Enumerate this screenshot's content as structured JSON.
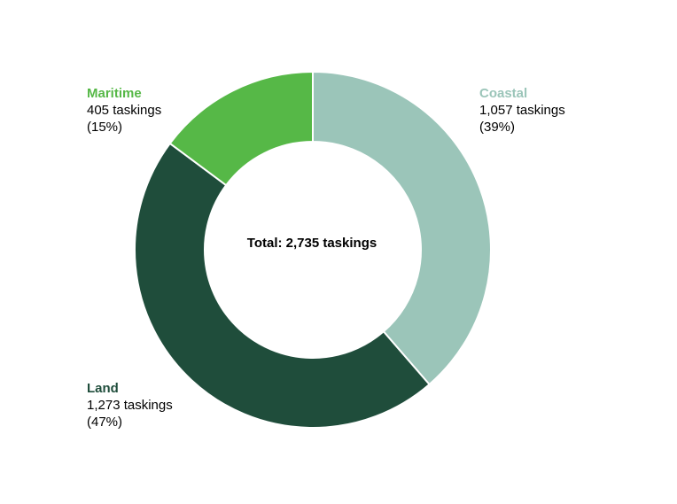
{
  "chart_data": {
    "type": "pie",
    "variant": "donut",
    "center_label": "Total: 2,735 taskings",
    "total": 2735,
    "start": "top, clockwise",
    "slices": [
      {
        "name": "Coastal",
        "value": 1057,
        "count_text": "1,057 taskings",
        "percent_text": "(39%)",
        "color": "#9bc5b9"
      },
      {
        "name": "Land",
        "value": 1273,
        "count_text": "1,273 taskings",
        "percent_text": "(47%)",
        "color": "#1f4d3b"
      },
      {
        "name": "Maritime",
        "value": 405,
        "count_text": "405 taskings",
        "percent_text": "(15%)",
        "color": "#56b847"
      }
    ]
  }
}
